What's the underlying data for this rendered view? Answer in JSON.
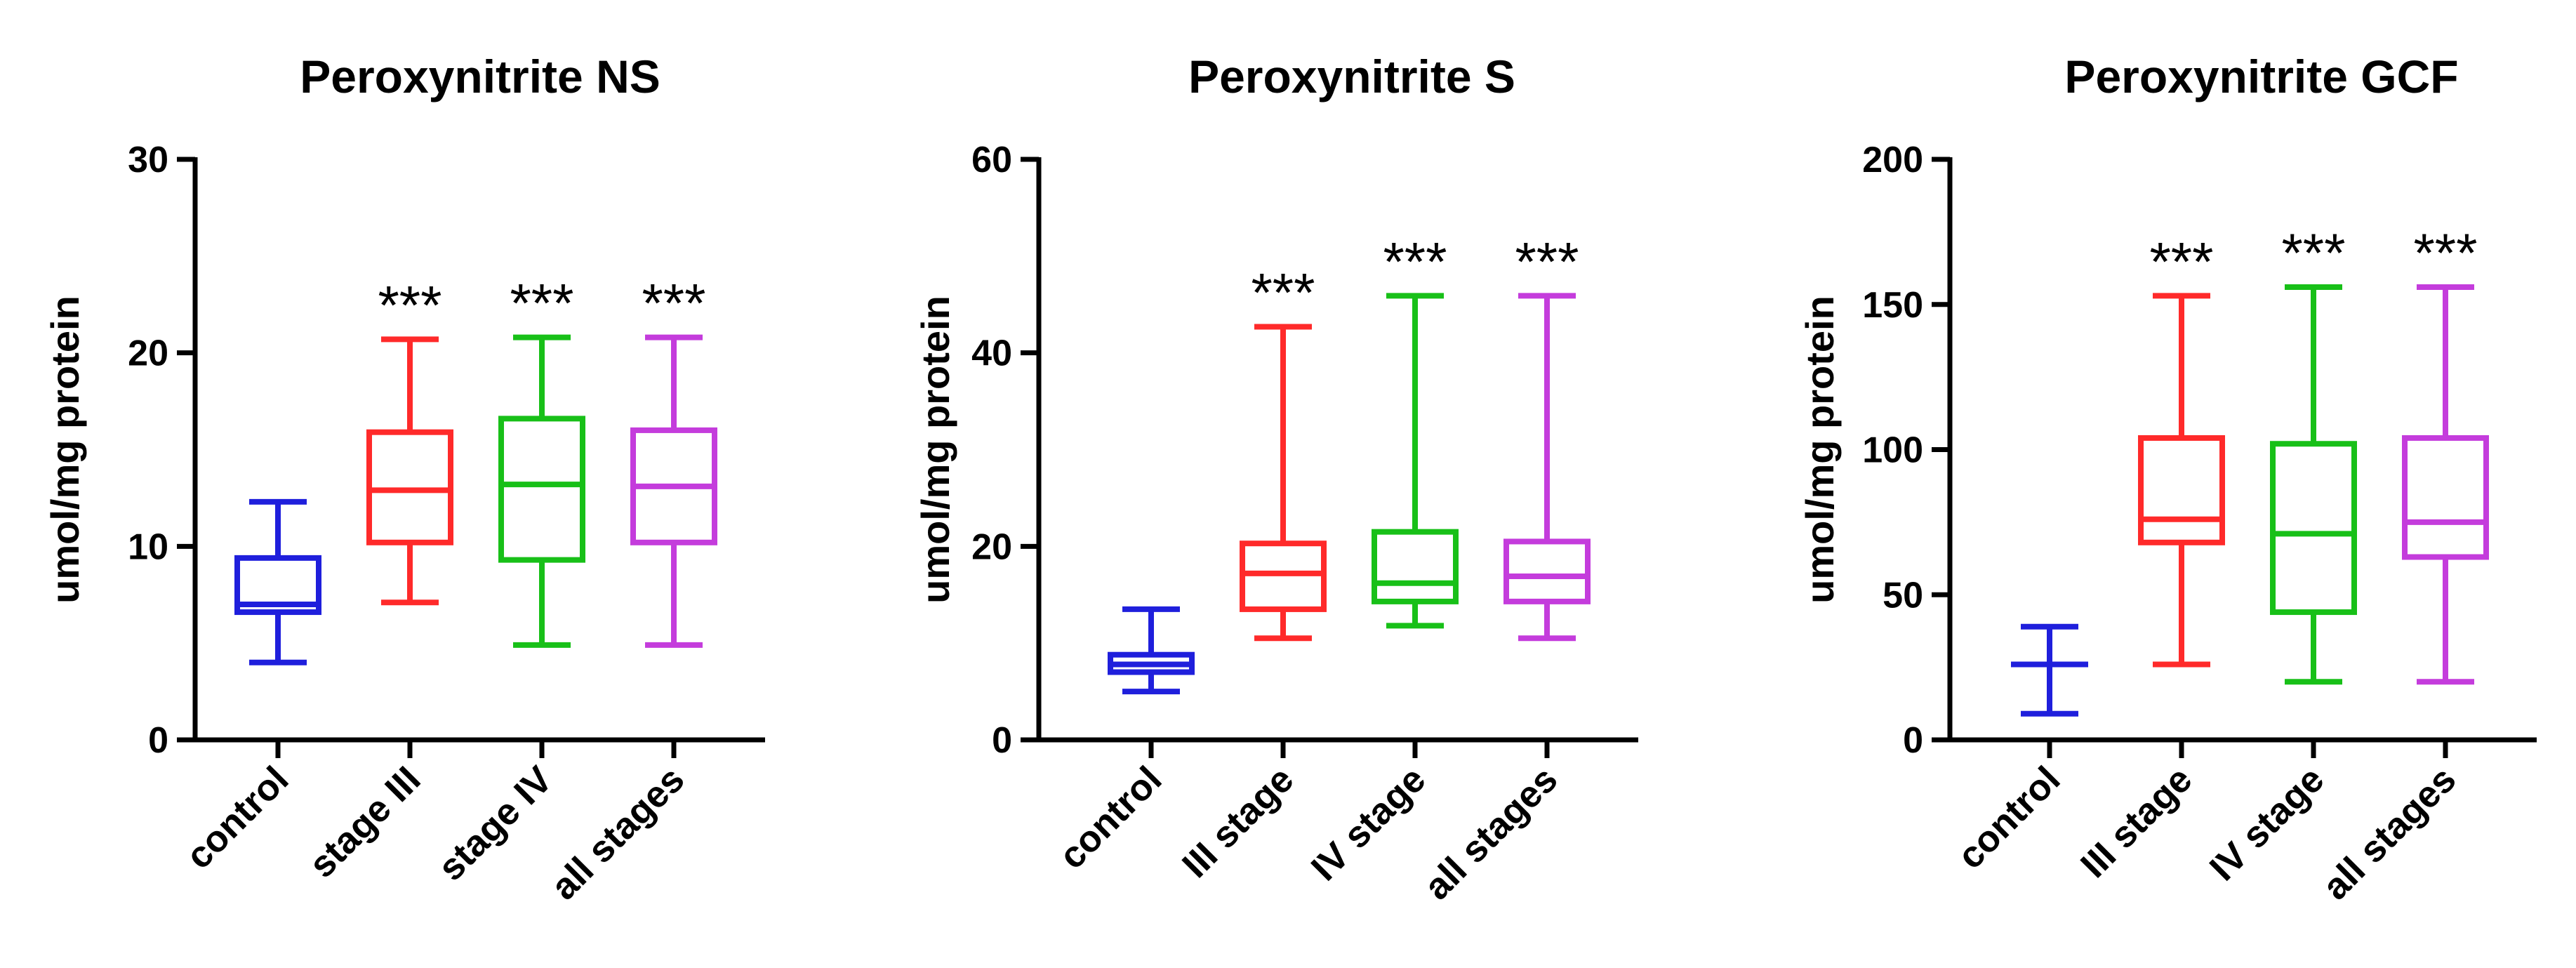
{
  "chart_data": [
    {
      "type": "box",
      "title": "Peroxynitrite NS",
      "ylabel": "umol/mg protein",
      "ylim": [
        0,
        30
      ],
      "yticks": [
        0,
        10,
        20,
        30
      ],
      "categories": [
        "control",
        "stage III",
        "stage IV",
        "all stages"
      ],
      "colors": [
        "#1f1fdc",
        "#ff2a2a",
        "#18c018",
        "#c43cdc"
      ],
      "boxes": [
        {
          "min": 4.0,
          "q1": 6.6,
          "median": 7.0,
          "q3": 9.4,
          "max": 12.3
        },
        {
          "min": 7.1,
          "q1": 10.2,
          "median": 12.9,
          "q3": 15.9,
          "max": 20.7
        },
        {
          "min": 4.9,
          "q1": 9.3,
          "median": 13.2,
          "q3": 16.6,
          "max": 20.8
        },
        {
          "min": 4.9,
          "q1": 10.2,
          "median": 13.1,
          "q3": 16.0,
          "max": 20.8
        }
      ],
      "significance": [
        "",
        "***",
        "***",
        "***"
      ]
    },
    {
      "type": "box",
      "title": "Peroxynitrite S",
      "ylabel": "umol/mg protein",
      "ylim": [
        0,
        60
      ],
      "yticks": [
        0,
        20,
        40,
        60
      ],
      "categories": [
        "control",
        "III stage",
        "IV stage",
        "all stages"
      ],
      "colors": [
        "#1f1fdc",
        "#ff2a2a",
        "#18c018",
        "#c43cdc"
      ],
      "boxes": [
        {
          "min": 5.0,
          "q1": 7.0,
          "median": 7.8,
          "q3": 8.8,
          "max": 13.5
        },
        {
          "min": 10.5,
          "q1": 13.5,
          "median": 17.2,
          "q3": 20.3,
          "max": 42.7
        },
        {
          "min": 11.8,
          "q1": 14.3,
          "median": 16.2,
          "q3": 21.5,
          "max": 45.9
        },
        {
          "min": 10.5,
          "q1": 14.3,
          "median": 16.9,
          "q3": 20.5,
          "max": 45.9
        }
      ],
      "significance": [
        "",
        "***",
        "***",
        "***"
      ]
    },
    {
      "type": "box",
      "title": "Peroxynitrite GCF",
      "ylabel": "umol/mg protein",
      "ylim": [
        0,
        200
      ],
      "yticks": [
        0,
        50,
        100,
        150,
        200
      ],
      "categories": [
        "control",
        "III stage",
        "IV stage",
        "all stages"
      ],
      "colors": [
        "#1f1fdc",
        "#ff2a2a",
        "#18c018",
        "#c43cdc"
      ],
      "boxes": [
        {
          "min": 9.0,
          "q1": 26.0,
          "median": 26.0,
          "q3": 26.0,
          "max": 39.0
        },
        {
          "min": 26.0,
          "q1": 68.0,
          "median": 76.0,
          "q3": 104.0,
          "max": 153.0
        },
        {
          "min": 20.0,
          "q1": 44.0,
          "median": 71.0,
          "q3": 102.0,
          "max": 156.0
        },
        {
          "min": 20.0,
          "q1": 63.0,
          "median": 75.0,
          "q3": 104.0,
          "max": 156.0
        }
      ],
      "significance": [
        "",
        "***",
        "***",
        "***"
      ]
    }
  ]
}
